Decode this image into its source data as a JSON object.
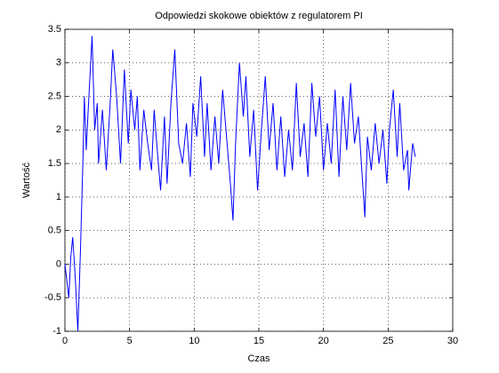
{
  "chart_data": {
    "type": "line",
    "title": "Odpowiedzi skokowe obiektów z regulatorem PI",
    "xlabel": "Czas",
    "ylabel": "Wartość",
    "xlim": [
      0,
      30
    ],
    "xticks": [
      0,
      5,
      10,
      15,
      20,
      25,
      30
    ],
    "ylim": [
      -1,
      3.5
    ],
    "yticks": [
      -1,
      -0.5,
      0,
      0.5,
      1,
      1.5,
      2,
      2.5,
      3,
      3.5
    ],
    "grid": true,
    "series": [
      {
        "color": "#0000ff",
        "x": [
          0,
          0.3,
          0.45,
          0.6,
          0.8,
          1.0,
          1.2,
          1.4,
          1.5,
          1.65,
          1.8,
          2.1,
          2.3,
          2.5,
          2.6,
          2.9,
          3.2,
          3.5,
          3.7,
          4.0,
          4.3,
          4.6,
          4.9,
          5.1,
          5.4,
          5.6,
          5.8,
          6.1,
          6.4,
          6.7,
          6.9,
          7.1,
          7.4,
          7.7,
          7.9,
          8.2,
          8.5,
          8.8,
          9.1,
          9.4,
          9.7,
          9.9,
          10.2,
          10.5,
          10.8,
          11.0,
          11.3,
          11.6,
          11.9,
          12.2,
          12.5,
          12.8,
          13.0,
          13.2,
          13.5,
          13.8,
          14.0,
          14.3,
          14.6,
          14.9,
          15.2,
          15.5,
          15.8,
          16.1,
          16.4,
          16.7,
          17.0,
          17.3,
          17.6,
          17.9,
          18.2,
          18.5,
          18.8,
          19.1,
          19.4,
          19.7,
          20.0,
          20.3,
          20.6,
          20.9,
          21.2,
          21.5,
          21.8,
          22.1,
          22.4,
          22.7,
          23.0,
          23.2,
          23.4,
          23.7,
          24.0,
          24.3,
          24.6,
          24.9,
          25.1,
          25.4,
          25.7,
          25.9,
          26.2,
          26.5,
          26.6,
          26.9,
          27.1
        ],
        "values": [
          0,
          -0.5,
          0.1,
          0.4,
          -0.2,
          -1.0,
          0.2,
          1.6,
          2.5,
          1.7,
          2.3,
          3.4,
          2.0,
          2.4,
          1.5,
          2.3,
          1.4,
          2.4,
          3.2,
          2.5,
          1.5,
          2.9,
          1.8,
          2.6,
          2.0,
          2.5,
          1.4,
          2.3,
          1.8,
          1.4,
          2.3,
          1.8,
          1.1,
          2.2,
          1.2,
          2.4,
          3.2,
          1.8,
          1.5,
          2.1,
          1.3,
          2.4,
          1.9,
          2.8,
          1.6,
          2.4,
          1.4,
          2.2,
          1.5,
          2.6,
          1.9,
          1.2,
          0.65,
          1.8,
          3.0,
          2.2,
          2.8,
          1.6,
          2.3,
          1.1,
          2.0,
          2.8,
          1.7,
          2.4,
          1.4,
          2.2,
          1.3,
          2.0,
          1.4,
          2.7,
          1.6,
          2.1,
          1.3,
          2.7,
          1.9,
          2.5,
          1.4,
          2.1,
          1.5,
          2.6,
          1.3,
          2.5,
          1.7,
          2.7,
          1.8,
          2.2,
          1.3,
          0.7,
          1.9,
          1.4,
          2.1,
          1.5,
          2.0,
          1.2,
          2.0,
          2.6,
          1.6,
          2.4,
          1.4,
          1.7,
          1.1,
          1.8,
          1.6
        ]
      }
    ]
  }
}
